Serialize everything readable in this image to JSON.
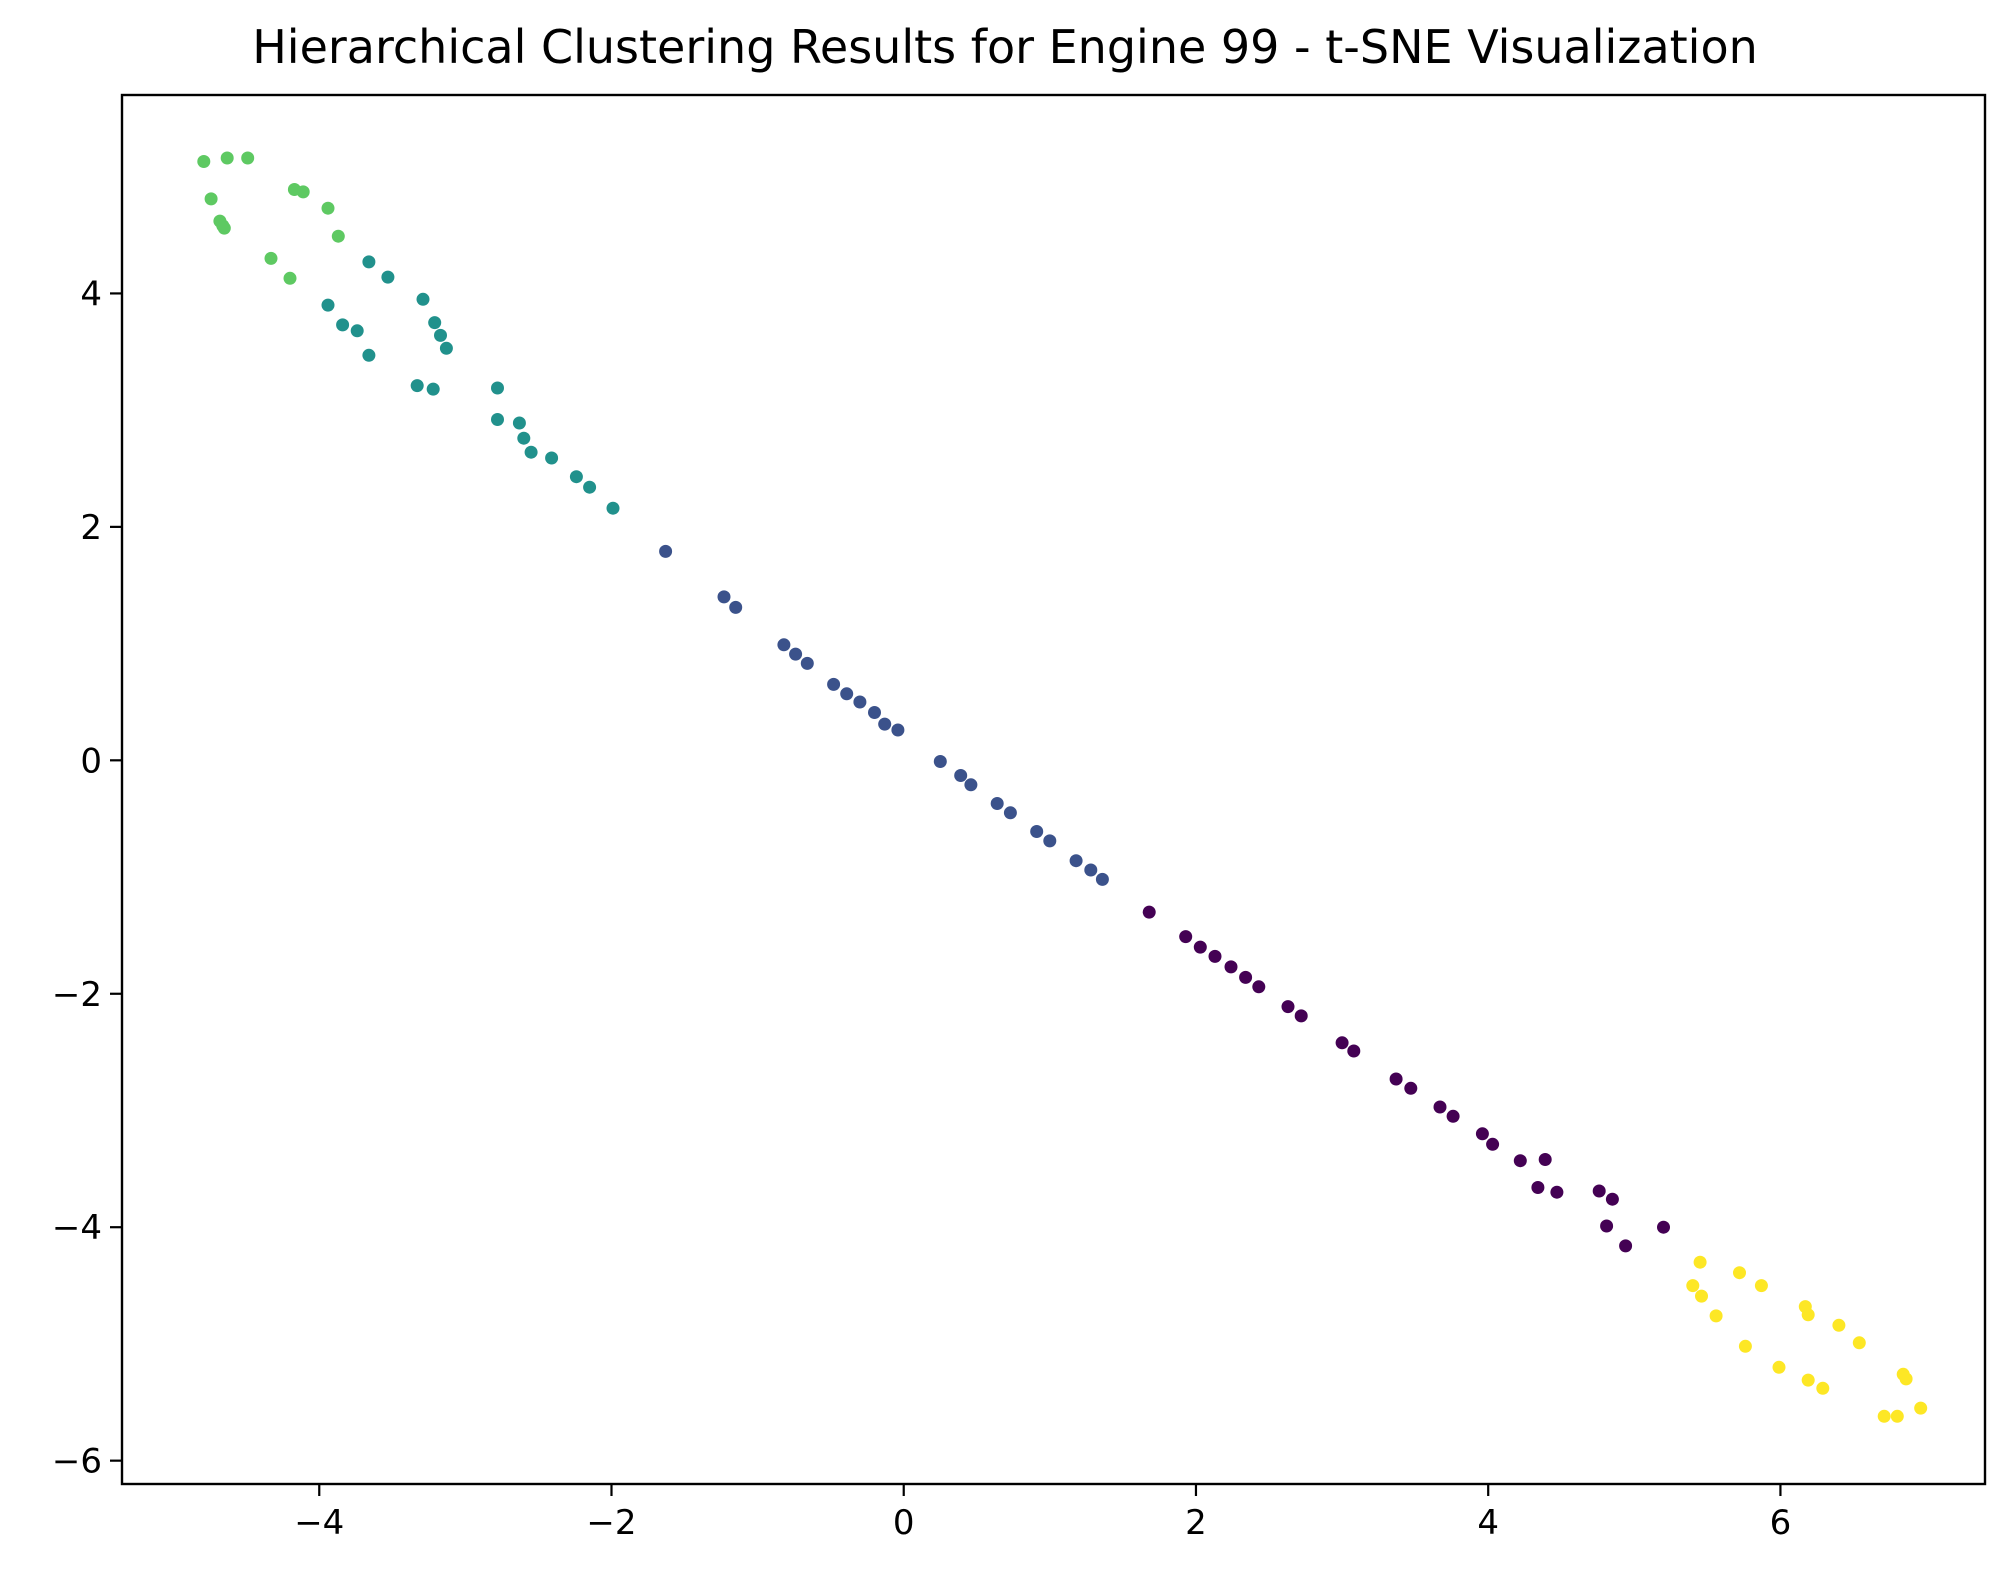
{
  "chart_data": {
    "type": "scatter",
    "title": "Hierarchical Clustering Results for Engine 99 - t-SNE Visualization",
    "xlabel": "",
    "ylabel": "",
    "xlim": [
      -5.35,
      7.4
    ],
    "ylim": [
      -6.2,
      5.7
    ],
    "xticks": [
      -4,
      -2,
      0,
      2,
      4,
      6
    ],
    "yticks": [
      -6,
      -4,
      -2,
      0,
      2,
      4
    ],
    "xtick_labels": [
      "−4",
      "−2",
      "0",
      "2",
      "4",
      "6"
    ],
    "ytick_labels": [
      "−6",
      "−4",
      "−2",
      "0",
      "2",
      "4"
    ],
    "grid": false,
    "legend": false,
    "clusters": [
      {
        "color": "#440154",
        "points": [
          [
            1.68,
            -1.3
          ],
          [
            1.93,
            -1.51
          ],
          [
            2.03,
            -1.6
          ],
          [
            2.13,
            -1.68
          ],
          [
            2.24,
            -1.77
          ],
          [
            2.34,
            -1.86
          ],
          [
            2.43,
            -1.94
          ],
          [
            2.63,
            -2.11
          ],
          [
            2.72,
            -2.19
          ],
          [
            3.0,
            -2.42
          ],
          [
            3.08,
            -2.49
          ],
          [
            3.37,
            -2.73
          ],
          [
            3.47,
            -2.81
          ],
          [
            3.67,
            -2.97
          ],
          [
            3.76,
            -3.05
          ],
          [
            3.96,
            -3.2
          ],
          [
            4.03,
            -3.29
          ],
          [
            4.22,
            -3.43
          ],
          [
            4.39,
            -3.42
          ],
          [
            4.34,
            -3.66
          ],
          [
            4.47,
            -3.7
          ],
          [
            4.76,
            -3.69
          ],
          [
            4.85,
            -3.76
          ],
          [
            4.81,
            -3.99
          ],
          [
            4.94,
            -4.16
          ],
          [
            5.2,
            -4.0
          ]
        ]
      },
      {
        "color": "#3b528b",
        "points": [
          [
            -1.63,
            1.79
          ],
          [
            -1.23,
            1.4
          ],
          [
            -1.15,
            1.31
          ],
          [
            -0.82,
            0.99
          ],
          [
            -0.74,
            0.91
          ],
          [
            -0.66,
            0.83
          ],
          [
            -0.48,
            0.65
          ],
          [
            -0.39,
            0.57
          ],
          [
            -0.3,
            0.5
          ],
          [
            -0.2,
            0.41
          ],
          [
            -0.13,
            0.31
          ],
          [
            -0.04,
            0.26
          ],
          [
            0.25,
            -0.01
          ],
          [
            0.39,
            -0.13
          ],
          [
            0.46,
            -0.21
          ],
          [
            0.64,
            -0.37
          ],
          [
            0.73,
            -0.45
          ],
          [
            0.91,
            -0.61
          ],
          [
            1.0,
            -0.69
          ],
          [
            1.18,
            -0.86
          ],
          [
            1.28,
            -0.94
          ],
          [
            1.36,
            -1.02
          ]
        ]
      },
      {
        "color": "#21918c",
        "points": [
          [
            -3.66,
            4.27
          ],
          [
            -3.53,
            4.14
          ],
          [
            -3.29,
            3.95
          ],
          [
            -3.21,
            3.75
          ],
          [
            -3.17,
            3.64
          ],
          [
            -3.13,
            3.53
          ],
          [
            -3.94,
            3.9
          ],
          [
            -3.84,
            3.73
          ],
          [
            -3.74,
            3.68
          ],
          [
            -3.66,
            3.47
          ],
          [
            -3.33,
            3.21
          ],
          [
            -3.22,
            3.18
          ],
          [
            -2.78,
            3.19
          ],
          [
            -2.78,
            2.92
          ],
          [
            -2.63,
            2.89
          ],
          [
            -2.6,
            2.76
          ],
          [
            -2.55,
            2.64
          ],
          [
            -2.41,
            2.59
          ],
          [
            -2.24,
            2.43
          ],
          [
            -2.15,
            2.34
          ],
          [
            -1.99,
            2.16
          ]
        ]
      },
      {
        "color": "#5ec962",
        "points": [
          [
            -4.79,
            5.13
          ],
          [
            -4.63,
            5.16
          ],
          [
            -4.49,
            5.16
          ],
          [
            -4.74,
            4.81
          ],
          [
            -4.68,
            4.62
          ],
          [
            -4.66,
            4.58
          ],
          [
            -4.65,
            4.56
          ],
          [
            -4.17,
            4.89
          ],
          [
            -4.11,
            4.87
          ],
          [
            -3.94,
            4.73
          ],
          [
            -3.87,
            4.49
          ],
          [
            -4.33,
            4.3
          ],
          [
            -4.2,
            4.13
          ]
        ]
      },
      {
        "color": "#fde725",
        "points": [
          [
            5.45,
            -4.3
          ],
          [
            5.72,
            -4.39
          ],
          [
            5.87,
            -4.5
          ],
          [
            5.4,
            -4.5
          ],
          [
            5.46,
            -4.59
          ],
          [
            5.56,
            -4.76
          ],
          [
            6.17,
            -4.68
          ],
          [
            6.19,
            -4.75
          ],
          [
            6.4,
            -4.84
          ],
          [
            6.54,
            -4.99
          ],
          [
            5.76,
            -5.02
          ],
          [
            5.99,
            -5.2
          ],
          [
            6.19,
            -5.31
          ],
          [
            6.29,
            -5.38
          ],
          [
            6.84,
            -5.26
          ],
          [
            6.86,
            -5.3
          ],
          [
            6.96,
            -5.55
          ],
          [
            6.71,
            -5.62
          ],
          [
            6.8,
            -5.62
          ]
        ]
      }
    ]
  }
}
